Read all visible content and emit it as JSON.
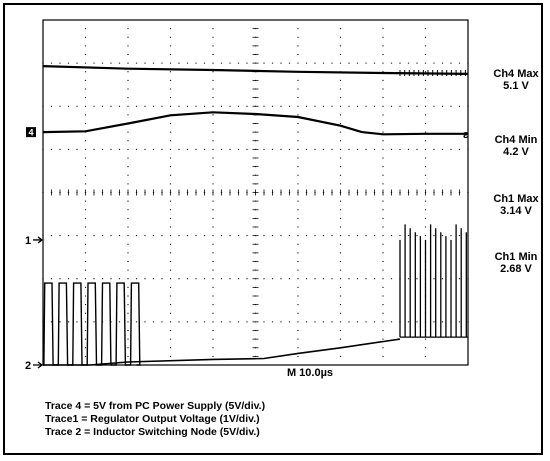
{
  "chart_data": {
    "type": "line",
    "timebase": "M 10.0µs",
    "marker_labels": {
      "trace4": "4",
      "trace1": "1",
      "trace2": "2"
    },
    "x_range_us": [
      0,
      100
    ],
    "divisions": {
      "x": 10,
      "y": 8
    },
    "series": [
      {
        "name": "Trace 4",
        "points": [
          [
            0,
            6.93
          ],
          [
            20,
            6.87
          ],
          [
            40,
            6.84
          ],
          [
            60,
            6.8
          ],
          [
            80,
            6.77
          ],
          [
            100,
            6.75
          ]
        ]
      },
      {
        "name": "Trace1",
        "points": [
          [
            0,
            5.4
          ],
          [
            10,
            5.42
          ],
          [
            20,
            5.6
          ],
          [
            30,
            5.79
          ],
          [
            40,
            5.86
          ],
          [
            50,
            5.82
          ],
          [
            60,
            5.75
          ],
          [
            70,
            5.55
          ],
          [
            75,
            5.4
          ],
          [
            80,
            5.35
          ],
          [
            90,
            5.36
          ],
          [
            100,
            5.36
          ]
        ]
      },
      {
        "name": "Trace 2",
        "points": [
          [
            0,
            0
          ],
          [
            11,
            0
          ],
          [
            20,
            0.07
          ],
          [
            40,
            0.13
          ],
          [
            52,
            0.15
          ],
          [
            60,
            0.27
          ],
          [
            70,
            0.4
          ],
          [
            84,
            0.6
          ]
        ],
        "switching_segments_us": [
          [
            0,
            22
          ],
          [
            84,
            100
          ]
        ]
      }
    ]
  },
  "measurements": [
    {
      "label": "Ch4 Max",
      "value": "5.1 V"
    },
    {
      "label": "Ch4 Min",
      "value": "4.2 V"
    },
    {
      "label": "Ch1 Max",
      "value": "3.14 V"
    },
    {
      "label": "Ch1 Min",
      "value": "2.68 V"
    }
  ],
  "legend": [
    "Trace 4 = 5V from PC Power Supply (5V/div.)",
    "Trace1 = Regulator Output Voltage (1V/div.)",
    "Trace 2 = Inductor Switching Node (5V/div.)"
  ]
}
